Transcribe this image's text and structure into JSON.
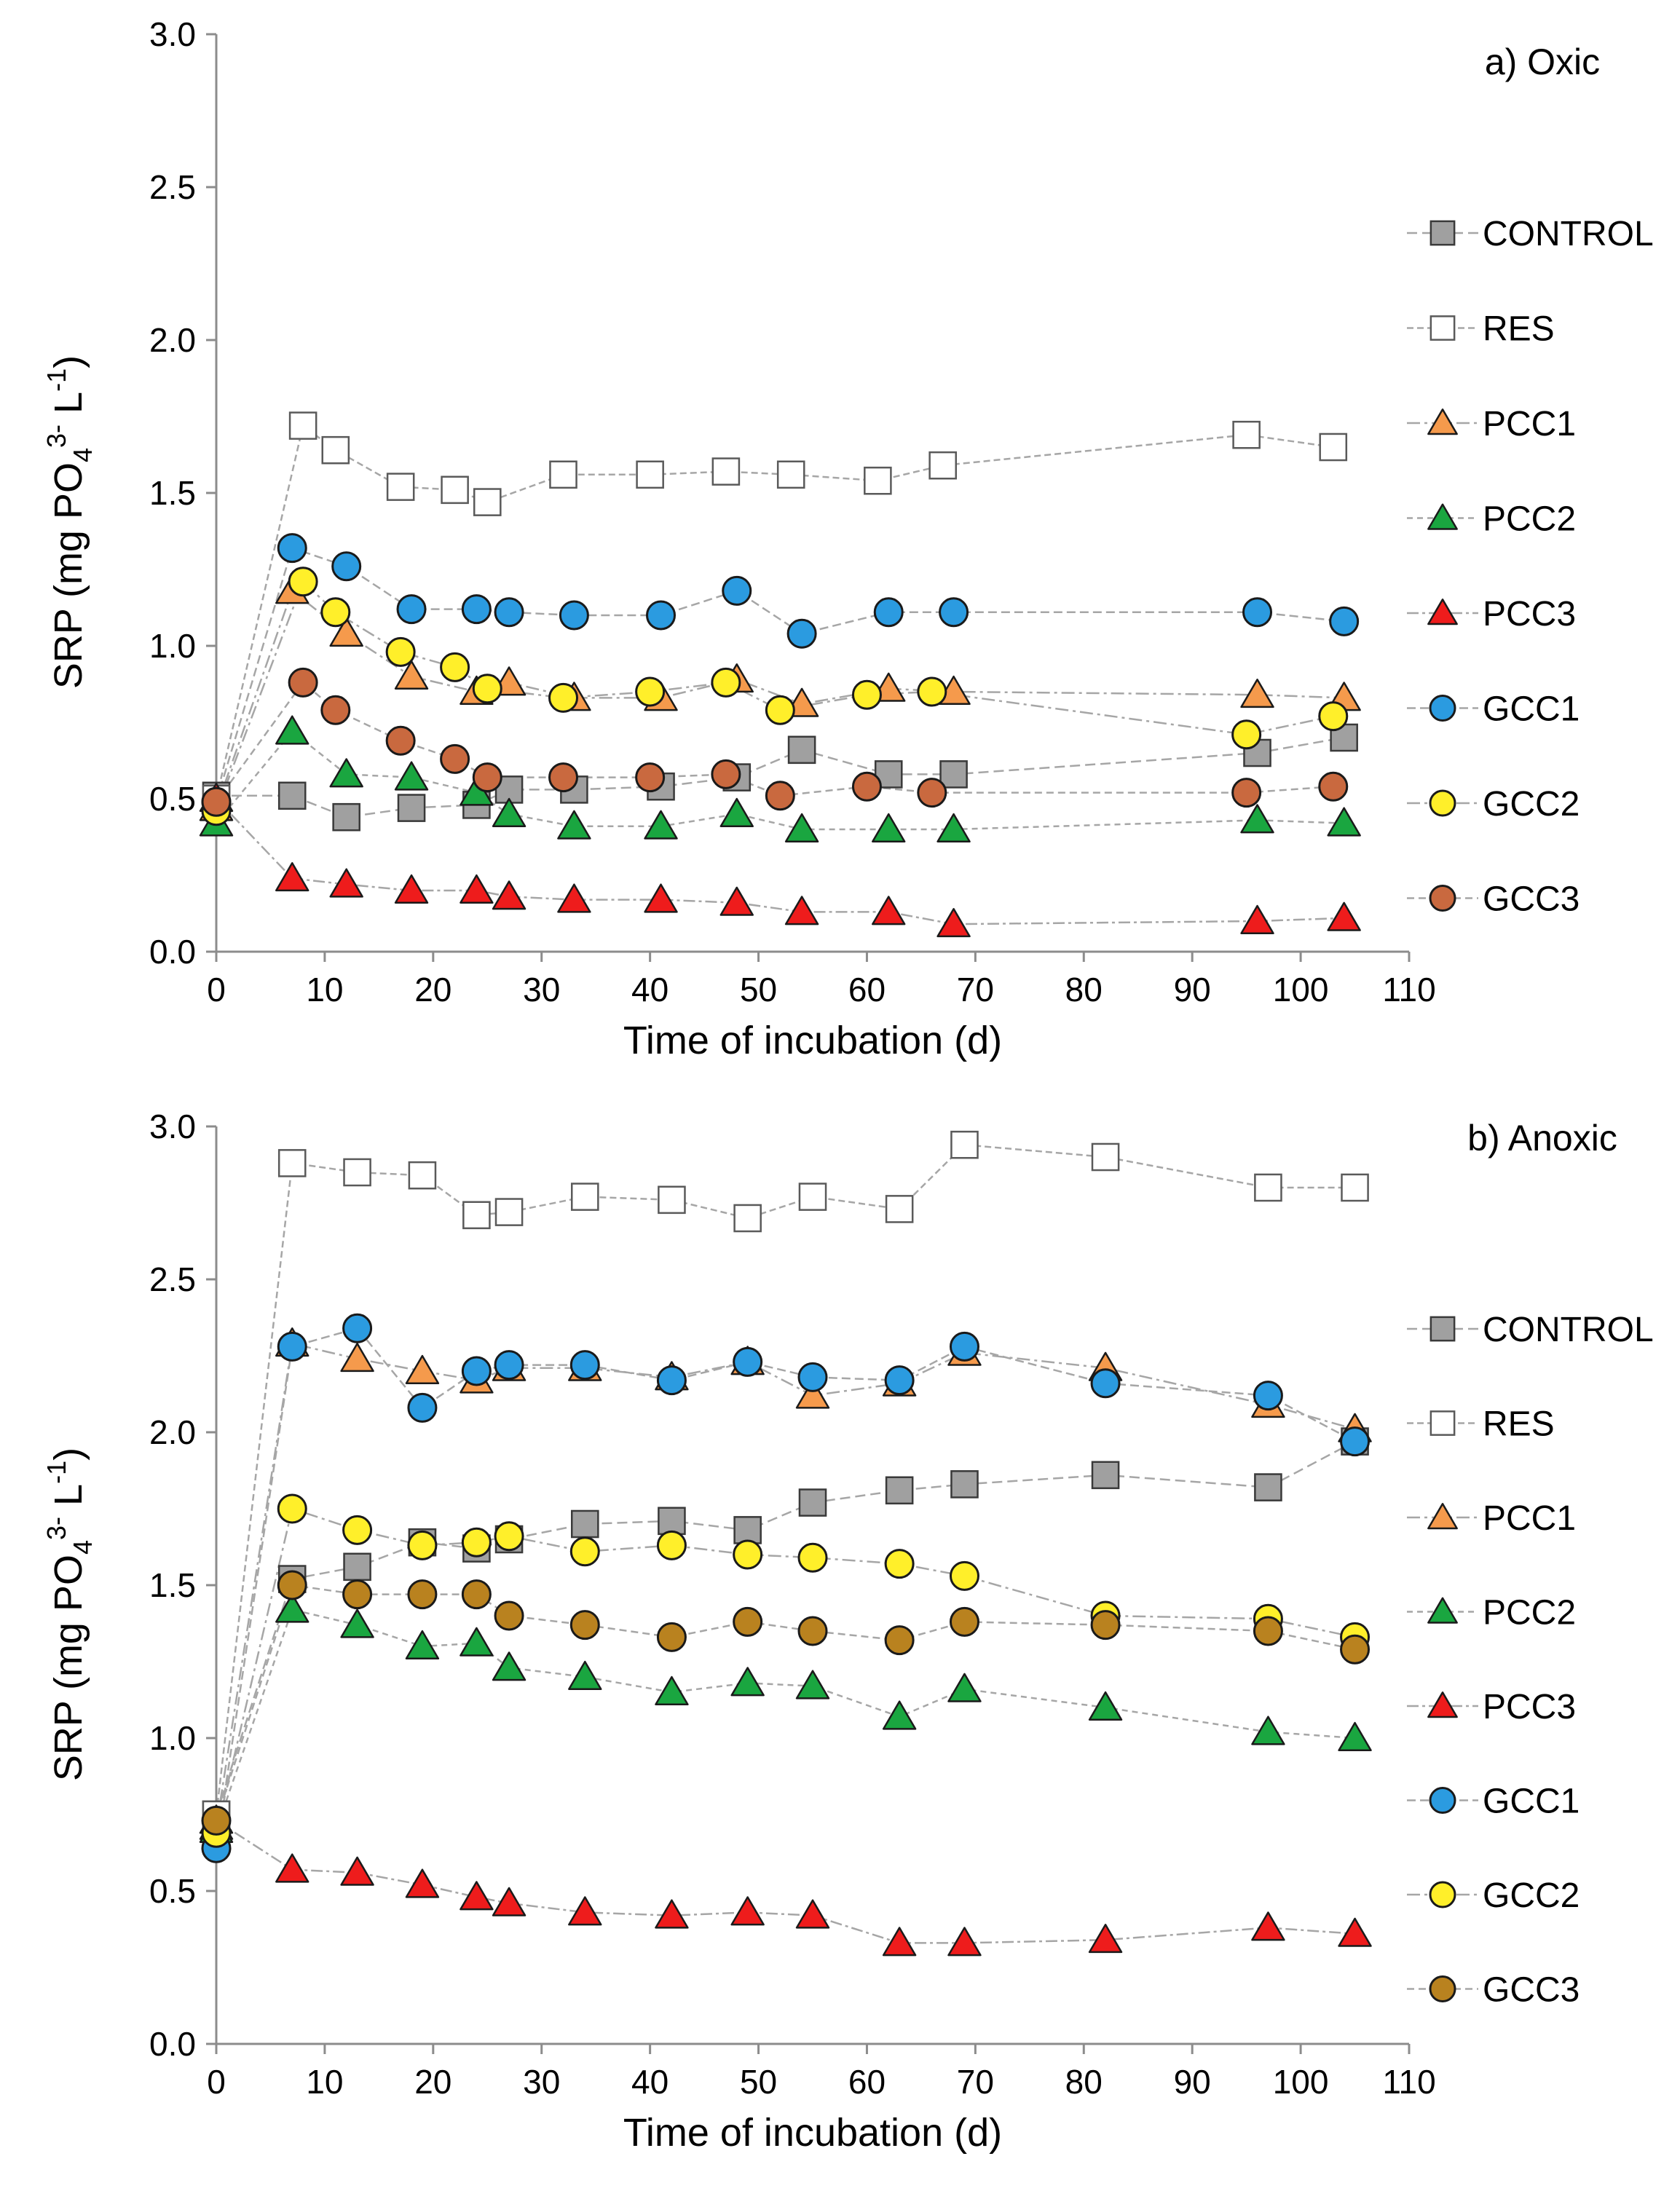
{
  "figure": {
    "colors": {
      "CONTROL": "#a0a0a0",
      "RES": "#ffffff",
      "PCC1": "#f59a4c",
      "PCC2": "#1aa640",
      "PCC3": "#ee1c1c",
      "GCC1": "#2b9be0",
      "GCC2": "#ffef2a",
      "GCC3_oxic": "#c9693f",
      "GCC3_anoxic": "#b9821f"
    }
  },
  "chart_data": [
    {
      "type": "scatter",
      "panel_label": "a) Oxic",
      "xlabel": "Time of incubation (d)",
      "ylabel": {
        "main": "SRP (mg PO",
        "sub": "4",
        "sup": "3-",
        "mid": " L",
        "sup2": "-1",
        "end": ")"
      },
      "xlim": [
        0,
        110
      ],
      "ylim": [
        0,
        3
      ],
      "xticks": [
        "0",
        "10",
        "20",
        "30",
        "40",
        "50",
        "60",
        "70",
        "80",
        "90",
        "100",
        "110"
      ],
      "yticks": [
        "0.0",
        "0.5",
        "1.0",
        "1.5",
        "2.0",
        "2.5",
        "3.0"
      ],
      "legend": [
        "CONTROL",
        "RES",
        "PCC1",
        "PCC2",
        "PCC3",
        "GCC1",
        "GCC2",
        "GCC3"
      ],
      "series": [
        {
          "name": "CONTROL",
          "marker": "square",
          "x": [
            0,
            7,
            12,
            18,
            24,
            27,
            33,
            41,
            48,
            54,
            62,
            68,
            96,
            104
          ],
          "y": [
            0.51,
            0.51,
            0.44,
            0.47,
            0.48,
            0.53,
            0.53,
            0.54,
            0.57,
            0.66,
            0.58,
            0.58,
            0.65,
            0.7
          ]
        },
        {
          "name": "RES",
          "marker": "square-open",
          "x": [
            0,
            8,
            11,
            17,
            22,
            25,
            32,
            40,
            47,
            53,
            61,
            67,
            95,
            103
          ],
          "y": [
            0.5,
            1.72,
            1.64,
            1.52,
            1.51,
            1.47,
            1.56,
            1.56,
            1.57,
            1.56,
            1.54,
            1.59,
            1.69,
            1.65
          ]
        },
        {
          "name": "PCC1",
          "marker": "triangle",
          "x": [
            0,
            7,
            12,
            18,
            24,
            27,
            33,
            41,
            48,
            54,
            62,
            68,
            96,
            104
          ],
          "y": [
            0.47,
            1.18,
            1.04,
            0.9,
            0.85,
            0.88,
            0.83,
            0.83,
            0.89,
            0.81,
            0.86,
            0.85,
            0.84,
            0.83
          ]
        },
        {
          "name": "PCC2",
          "marker": "triangle",
          "x": [
            0,
            7,
            12,
            18,
            24,
            27,
            33,
            41,
            48,
            54,
            62,
            68,
            96,
            104
          ],
          "y": [
            0.42,
            0.72,
            0.58,
            0.57,
            0.52,
            0.45,
            0.41,
            0.41,
            0.45,
            0.4,
            0.4,
            0.4,
            0.43,
            0.42
          ]
        },
        {
          "name": "PCC3",
          "marker": "triangle",
          "x": [
            0,
            7,
            12,
            18,
            24,
            27,
            33,
            41,
            48,
            54,
            62,
            68,
            96,
            104
          ],
          "y": [
            0.5,
            0.24,
            0.22,
            0.2,
            0.2,
            0.18,
            0.17,
            0.17,
            0.16,
            0.13,
            0.13,
            0.09,
            0.1,
            0.11
          ]
        },
        {
          "name": "GCC1",
          "marker": "circle",
          "x": [
            0,
            7,
            12,
            18,
            24,
            27,
            33,
            41,
            48,
            54,
            62,
            68,
            96,
            104
          ],
          "y": [
            0.49,
            1.32,
            1.26,
            1.12,
            1.12,
            1.11,
            1.1,
            1.1,
            1.18,
            1.04,
            1.11,
            1.11,
            1.11,
            1.08
          ]
        },
        {
          "name": "GCC2",
          "marker": "circle",
          "x": [
            0,
            8,
            11,
            17,
            22,
            25,
            32,
            40,
            47,
            52,
            60,
            66,
            95,
            103
          ],
          "y": [
            0.46,
            1.21,
            1.11,
            0.98,
            0.93,
            0.86,
            0.83,
            0.85,
            0.88,
            0.79,
            0.84,
            0.85,
            0.71,
            0.77
          ]
        },
        {
          "name": "GCC3",
          "marker": "circle",
          "x": [
            0,
            8,
            11,
            17,
            22,
            25,
            32,
            40,
            47,
            52,
            60,
            66,
            95,
            103
          ],
          "y": [
            0.49,
            0.88,
            0.79,
            0.69,
            0.63,
            0.57,
            0.57,
            0.57,
            0.58,
            0.51,
            0.54,
            0.52,
            0.52,
            0.54
          ]
        }
      ]
    },
    {
      "type": "scatter",
      "panel_label": "b) Anoxic",
      "xlabel": "Time of incubation (d)",
      "ylabel": {
        "main": "SRP (mg PO",
        "sub": "4",
        "sup": "3-",
        "mid": " L",
        "sup2": "-1",
        "end": ")"
      },
      "xlim": [
        0,
        110
      ],
      "ylim": [
        0,
        3
      ],
      "xticks": [
        "0",
        "10",
        "20",
        "30",
        "40",
        "50",
        "60",
        "70",
        "80",
        "90",
        "100",
        "110"
      ],
      "yticks": [
        "0.0",
        "0.5",
        "1.0",
        "1.5",
        "2.0",
        "2.5",
        "3.0"
      ],
      "legend": [
        "CONTROL",
        "RES",
        "PCC1",
        "PCC2",
        "PCC3",
        "GCC1",
        "GCC2",
        "GCC3"
      ],
      "series": [
        {
          "name": "CONTROL",
          "marker": "square",
          "x": [
            0,
            7,
            13,
            19,
            24,
            27,
            34,
            42,
            49,
            55,
            63,
            69,
            82,
            97,
            105
          ],
          "y": [
            0.75,
            1.52,
            1.56,
            1.64,
            1.62,
            1.65,
            1.7,
            1.71,
            1.68,
            1.77,
            1.81,
            1.83,
            1.86,
            1.82,
            1.97
          ]
        },
        {
          "name": "RES",
          "marker": "square-open",
          "x": [
            0,
            7,
            13,
            19,
            24,
            27,
            34,
            42,
            49,
            55,
            63,
            69,
            82,
            97,
            105
          ],
          "y": [
            0.75,
            2.88,
            2.85,
            2.84,
            2.71,
            2.72,
            2.77,
            2.76,
            2.7,
            2.77,
            2.73,
            2.94,
            2.9,
            2.8,
            2.8
          ]
        },
        {
          "name": "PCC1",
          "marker": "triangle",
          "x": [
            0,
            7,
            13,
            19,
            24,
            27,
            34,
            42,
            49,
            55,
            63,
            69,
            82,
            97,
            105
          ],
          "y": [
            0.71,
            2.29,
            2.24,
            2.2,
            2.17,
            2.21,
            2.21,
            2.18,
            2.23,
            2.12,
            2.16,
            2.26,
            2.21,
            2.09,
            2.01
          ]
        },
        {
          "name": "PCC2",
          "marker": "triangle",
          "x": [
            0,
            7,
            13,
            19,
            24,
            27,
            34,
            42,
            49,
            55,
            63,
            69,
            82,
            97,
            105
          ],
          "y": [
            0.7,
            1.42,
            1.37,
            1.3,
            1.31,
            1.23,
            1.2,
            1.15,
            1.18,
            1.17,
            1.07,
            1.16,
            1.1,
            1.02,
            1.0
          ]
        },
        {
          "name": "PCC3",
          "marker": "triangle",
          "x": [
            0,
            7,
            13,
            19,
            24,
            27,
            34,
            42,
            49,
            55,
            63,
            69,
            82,
            97,
            105
          ],
          "y": [
            0.73,
            0.57,
            0.56,
            0.52,
            0.48,
            0.46,
            0.43,
            0.42,
            0.43,
            0.42,
            0.33,
            0.33,
            0.34,
            0.38,
            0.36
          ]
        },
        {
          "name": "GCC1",
          "marker": "circle",
          "x": [
            0,
            7,
            13,
            19,
            24,
            27,
            34,
            42,
            49,
            55,
            63,
            69,
            82,
            97,
            105
          ],
          "y": [
            0.64,
            2.28,
            2.34,
            2.08,
            2.2,
            2.22,
            2.22,
            2.17,
            2.23,
            2.18,
            2.17,
            2.28,
            2.16,
            2.12,
            1.97
          ]
        },
        {
          "name": "GCC2",
          "marker": "circle",
          "x": [
            0,
            7,
            13,
            19,
            24,
            27,
            34,
            42,
            49,
            55,
            63,
            69,
            82,
            97,
            105
          ],
          "y": [
            0.69,
            1.75,
            1.68,
            1.63,
            1.64,
            1.66,
            1.61,
            1.63,
            1.6,
            1.59,
            1.57,
            1.53,
            1.4,
            1.39,
            1.33
          ]
        },
        {
          "name": "GCC3",
          "marker": "circle",
          "x": [
            0,
            7,
            13,
            19,
            24,
            27,
            34,
            42,
            49,
            55,
            63,
            69,
            82,
            97,
            105
          ],
          "y": [
            0.73,
            1.5,
            1.47,
            1.47,
            1.47,
            1.4,
            1.37,
            1.33,
            1.38,
            1.35,
            1.32,
            1.38,
            1.37,
            1.35,
            1.29
          ]
        }
      ]
    }
  ]
}
